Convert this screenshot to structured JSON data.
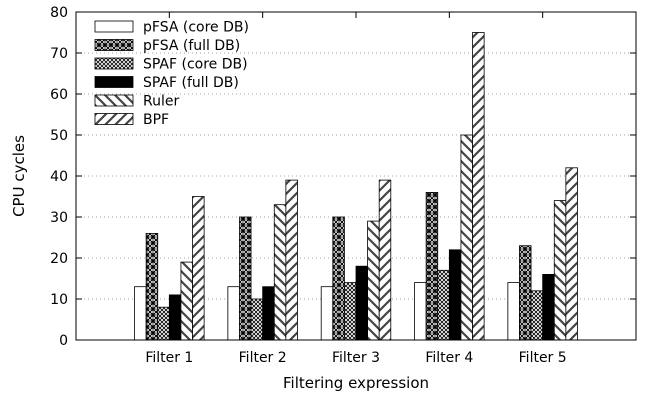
{
  "chart_data": {
    "type": "bar",
    "title": "",
    "xlabel": "Filtering expression",
    "ylabel": "CPU cycles",
    "ylim": [
      0,
      80
    ],
    "yticks": [
      0,
      10,
      20,
      30,
      40,
      50,
      60,
      70,
      80
    ],
    "grid": "horizontal dotted",
    "legend_position": "top-left",
    "categories": [
      "Filter 1",
      "Filter 2",
      "Filter 3",
      "Filter 4",
      "Filter 5"
    ],
    "series": [
      {
        "name": "pFSA (core DB)",
        "pattern": "white",
        "values": [
          13,
          13,
          13,
          14,
          14
        ]
      },
      {
        "name": "pFSA (full DB)",
        "pattern": "diamond-lattice",
        "values": [
          26,
          30,
          30,
          36,
          23
        ]
      },
      {
        "name": "SPAF (core DB)",
        "pattern": "crosshatch",
        "values": [
          8,
          10,
          14,
          17,
          12
        ]
      },
      {
        "name": "SPAF (full DB)",
        "pattern": "black",
        "values": [
          11,
          13,
          18,
          22,
          16
        ]
      },
      {
        "name": "Ruler",
        "pattern": "backslash",
        "values": [
          19,
          33,
          29,
          50,
          34
        ]
      },
      {
        "name": "BPF",
        "pattern": "slash",
        "values": [
          35,
          39,
          39,
          75,
          42
        ]
      }
    ]
  }
}
